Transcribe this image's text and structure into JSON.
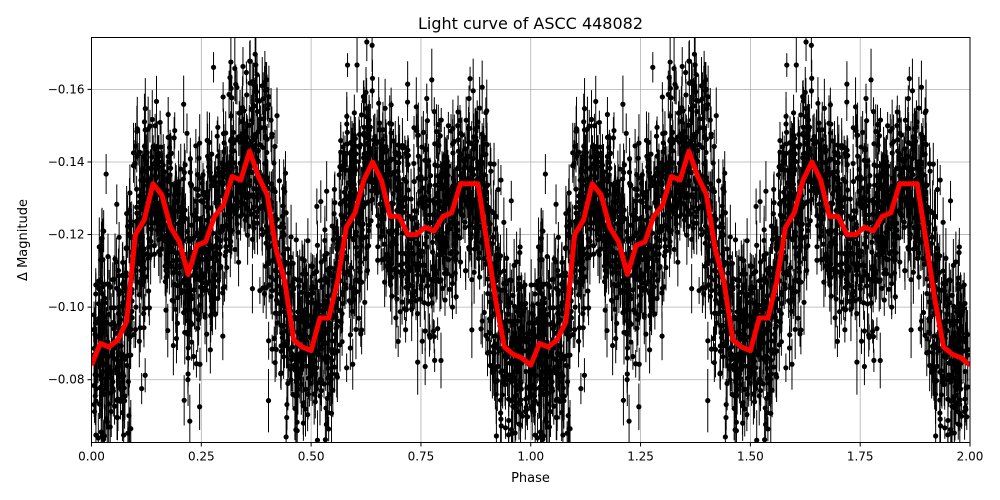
{
  "chart_data": {
    "type": "scatter",
    "title": "Light curve of ASCC 448082",
    "xlabel": "Phase",
    "ylabel": "Δ Magnitude",
    "xlim": [
      0,
      2
    ],
    "ylim": [
      -0.0627,
      -0.1743
    ],
    "y_inverted": true,
    "grid": true,
    "x_ticks": [
      "0.00",
      "0.25",
      "0.50",
      "0.75",
      "1.00",
      "1.25",
      "1.50",
      "1.75",
      "2.00"
    ],
    "y_ticks": [
      "−0.08",
      "−0.10",
      "−0.12",
      "−0.14",
      "−0.16"
    ],
    "scatter_series": {
      "marker": "filled circle with vertical error bars",
      "color": "#000000",
      "note_scatter": "dense phase-folded photometry, spread ≈ ±0.02 mag around the model curve, repeated with period 1 in phase"
    },
    "model_curve": {
      "color": "#ff0000",
      "period_in_phase": 1,
      "phase": [
        0.0,
        0.02,
        0.04,
        0.06,
        0.08,
        0.1,
        0.12,
        0.14,
        0.16,
        0.18,
        0.2,
        0.22,
        0.24,
        0.26,
        0.28,
        0.3,
        0.32,
        0.34,
        0.36,
        0.38,
        0.4,
        0.42,
        0.44,
        0.46,
        0.48,
        0.5,
        0.52,
        0.54,
        0.56,
        0.58,
        0.6,
        0.62,
        0.64,
        0.66,
        0.68,
        0.7,
        0.72,
        0.74,
        0.76,
        0.78,
        0.8,
        0.82,
        0.84,
        0.86,
        0.88,
        0.9,
        0.92,
        0.94,
        0.96,
        0.98,
        1.0
      ],
      "magnitude": [
        -0.084,
        -0.09,
        -0.089,
        -0.091,
        -0.096,
        -0.12,
        -0.124,
        -0.134,
        -0.131,
        -0.122,
        -0.118,
        -0.109,
        -0.117,
        -0.118,
        -0.125,
        -0.128,
        -0.136,
        -0.135,
        -0.143,
        -0.136,
        -0.131,
        -0.116,
        -0.107,
        -0.091,
        -0.089,
        -0.088,
        -0.097,
        -0.097,
        -0.107,
        -0.122,
        -0.126,
        -0.135,
        -0.14,
        -0.135,
        -0.125,
        -0.125,
        -0.12,
        -0.12,
        -0.122,
        -0.121,
        -0.125,
        -0.126,
        -0.134,
        -0.134,
        -0.134,
        -0.118,
        -0.102,
        -0.089,
        -0.087,
        -0.086,
        -0.084
      ]
    }
  }
}
